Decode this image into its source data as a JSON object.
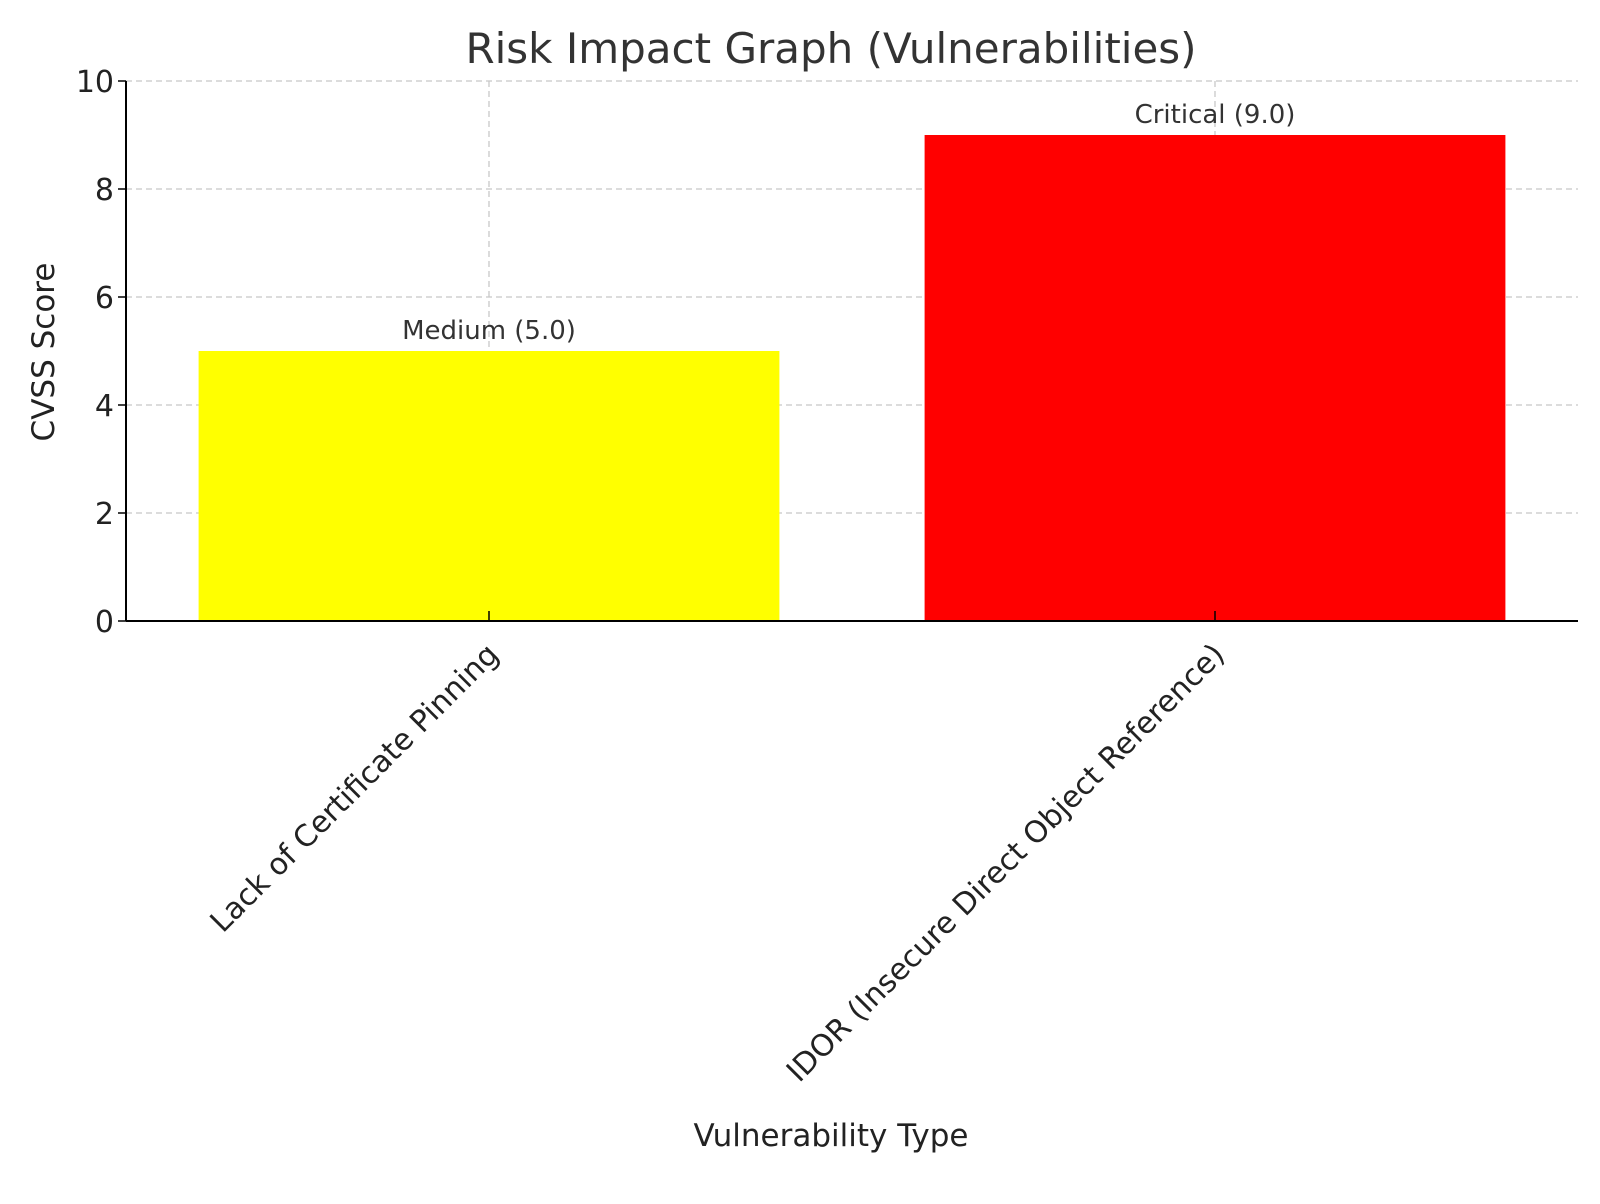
{
  "chart_data": {
    "type": "bar",
    "title": "Risk Impact Graph (Vulnerabilities)",
    "xlabel": "Vulnerability Type",
    "ylabel": "CVSS Score",
    "ylim": [
      0,
      10
    ],
    "yticks": [
      0,
      2,
      4,
      6,
      8,
      10
    ],
    "grid": true,
    "categories": [
      "Lack of Certificate Pinning",
      "IDOR (Insecure Direct Object Reference)"
    ],
    "values": [
      5.0,
      9.0
    ],
    "colors": [
      "#ffff00",
      "#ff0000"
    ],
    "data_labels": [
      "Medium (5.0)",
      "Critical (9.0)"
    ]
  }
}
